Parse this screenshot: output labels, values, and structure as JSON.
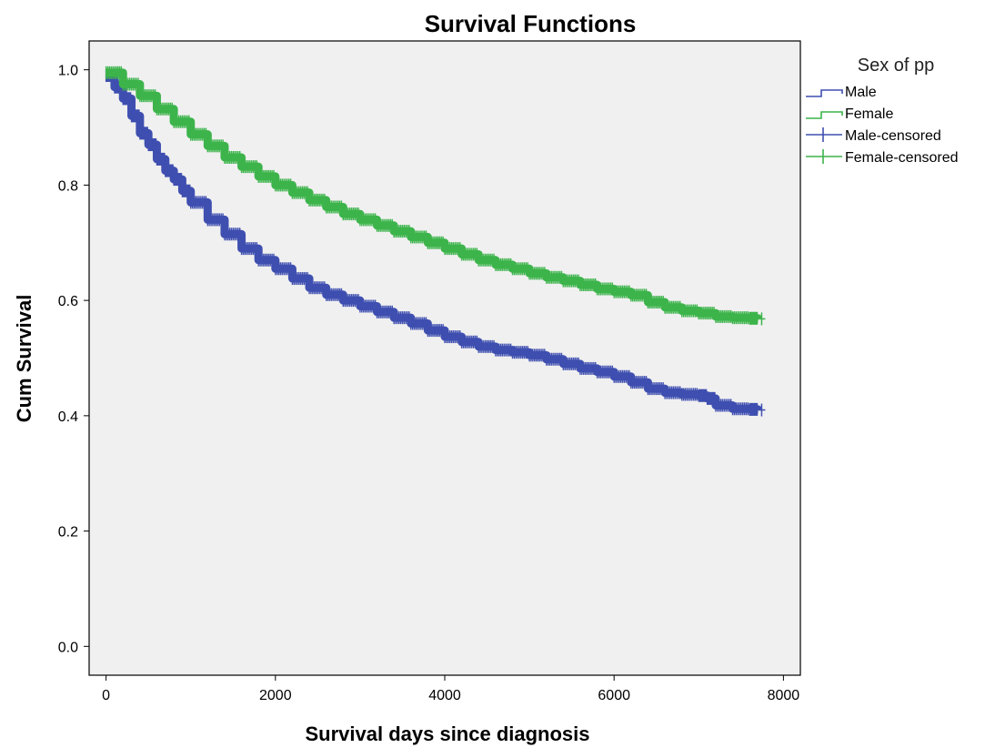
{
  "chart_data": {
    "type": "line",
    "step": true,
    "title": "Survival Functions",
    "xlabel": "Survival days since diagnosis",
    "ylabel": "Cum Survival",
    "xlim": [
      -200,
      8200
    ],
    "ylim": [
      -0.05,
      1.05
    ],
    "xticks": [
      0,
      2000,
      4000,
      6000,
      8000
    ],
    "yticks": [
      0.0,
      0.2,
      0.4,
      0.6,
      0.8,
      1.0
    ],
    "xtick_labels": [
      "0",
      "2000",
      "4000",
      "6000",
      "8000"
    ],
    "ytick_labels": [
      "0.0",
      "0.2",
      "0.4",
      "0.6",
      "0.8",
      "1.0"
    ],
    "grid": false,
    "background": "#f0f0f0",
    "legend": {
      "title": "Sex of pp",
      "placement": "right",
      "entries": [
        "Male",
        "Female",
        "Male-censored",
        "Female-censored"
      ]
    },
    "series": [
      {
        "name": "Male",
        "color": "#3f4fb0",
        "x": [
          0,
          100,
          200,
          300,
          400,
          500,
          600,
          700,
          800,
          900,
          1000,
          1200,
          1400,
          1600,
          1800,
          2000,
          2200,
          2400,
          2600,
          2800,
          3000,
          3200,
          3400,
          3600,
          3800,
          4000,
          4200,
          4400,
          4600,
          4800,
          5000,
          5200,
          5400,
          5600,
          5800,
          6000,
          6200,
          6400,
          6600,
          6800,
          7000,
          7100,
          7200,
          7400,
          7600,
          7700
        ],
        "y": [
          0.99,
          0.97,
          0.95,
          0.92,
          0.89,
          0.87,
          0.845,
          0.825,
          0.81,
          0.79,
          0.77,
          0.74,
          0.715,
          0.69,
          0.67,
          0.655,
          0.638,
          0.622,
          0.61,
          0.6,
          0.59,
          0.58,
          0.57,
          0.56,
          0.548,
          0.537,
          0.528,
          0.52,
          0.514,
          0.51,
          0.505,
          0.498,
          0.49,
          0.482,
          0.476,
          0.468,
          0.458,
          0.447,
          0.44,
          0.437,
          0.435,
          0.43,
          0.418,
          0.412,
          0.411,
          0.41
        ]
      },
      {
        "name": "Female",
        "color": "#3cb44b",
        "x": [
          0,
          200,
          400,
          600,
          800,
          1000,
          1200,
          1400,
          1600,
          1800,
          2000,
          2200,
          2400,
          2600,
          2800,
          3000,
          3200,
          3400,
          3600,
          3800,
          4000,
          4200,
          4400,
          4600,
          4800,
          5000,
          5200,
          5400,
          5600,
          5800,
          6000,
          6200,
          6400,
          6600,
          6800,
          7000,
          7200,
          7400,
          7600,
          7700
        ],
        "y": [
          0.995,
          0.975,
          0.955,
          0.932,
          0.91,
          0.888,
          0.868,
          0.848,
          0.832,
          0.815,
          0.8,
          0.787,
          0.774,
          0.762,
          0.75,
          0.74,
          0.73,
          0.72,
          0.71,
          0.7,
          0.69,
          0.68,
          0.67,
          0.662,
          0.655,
          0.647,
          0.64,
          0.634,
          0.627,
          0.62,
          0.615,
          0.609,
          0.597,
          0.588,
          0.582,
          0.578,
          0.572,
          0.57,
          0.569,
          0.568
        ]
      }
    ]
  }
}
